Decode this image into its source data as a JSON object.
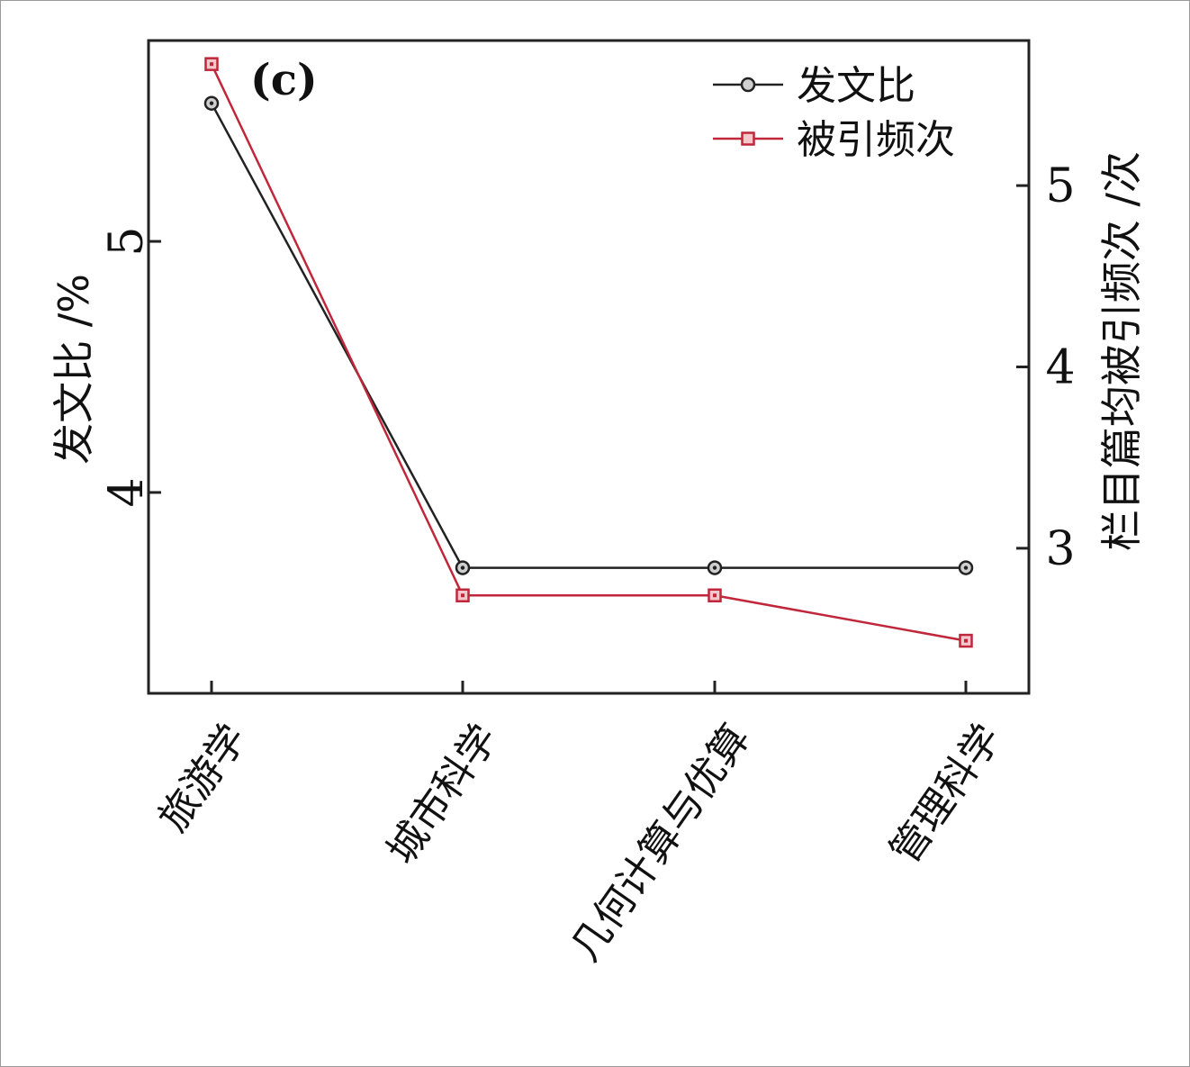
{
  "chart_data": {
    "type": "line",
    "panel_label": "(c)",
    "categories": [
      "旅游学",
      "城市科学",
      "几何计算与优算",
      "管理科学"
    ],
    "y_left": {
      "label": "发文比 /%",
      "ticks": [
        "4",
        "5"
      ],
      "ylim": [
        3.2,
        5.8
      ]
    },
    "y_right": {
      "label": "栏目篇均被引频次 /次",
      "ticks": [
        "3",
        "4",
        "5"
      ],
      "ylim": [
        2.2,
        5.8
      ]
    },
    "legend_position": "top-right",
    "series": [
      {
        "name": "发文比",
        "axis": "left",
        "color": "#222222",
        "marker": "circle",
        "values": [
          5.55,
          3.7,
          3.7,
          3.7
        ]
      },
      {
        "name": "被引频次",
        "axis": "right",
        "color": "#c0273a",
        "marker": "square",
        "values": [
          5.67,
          2.74,
          2.74,
          2.49
        ]
      }
    ]
  }
}
